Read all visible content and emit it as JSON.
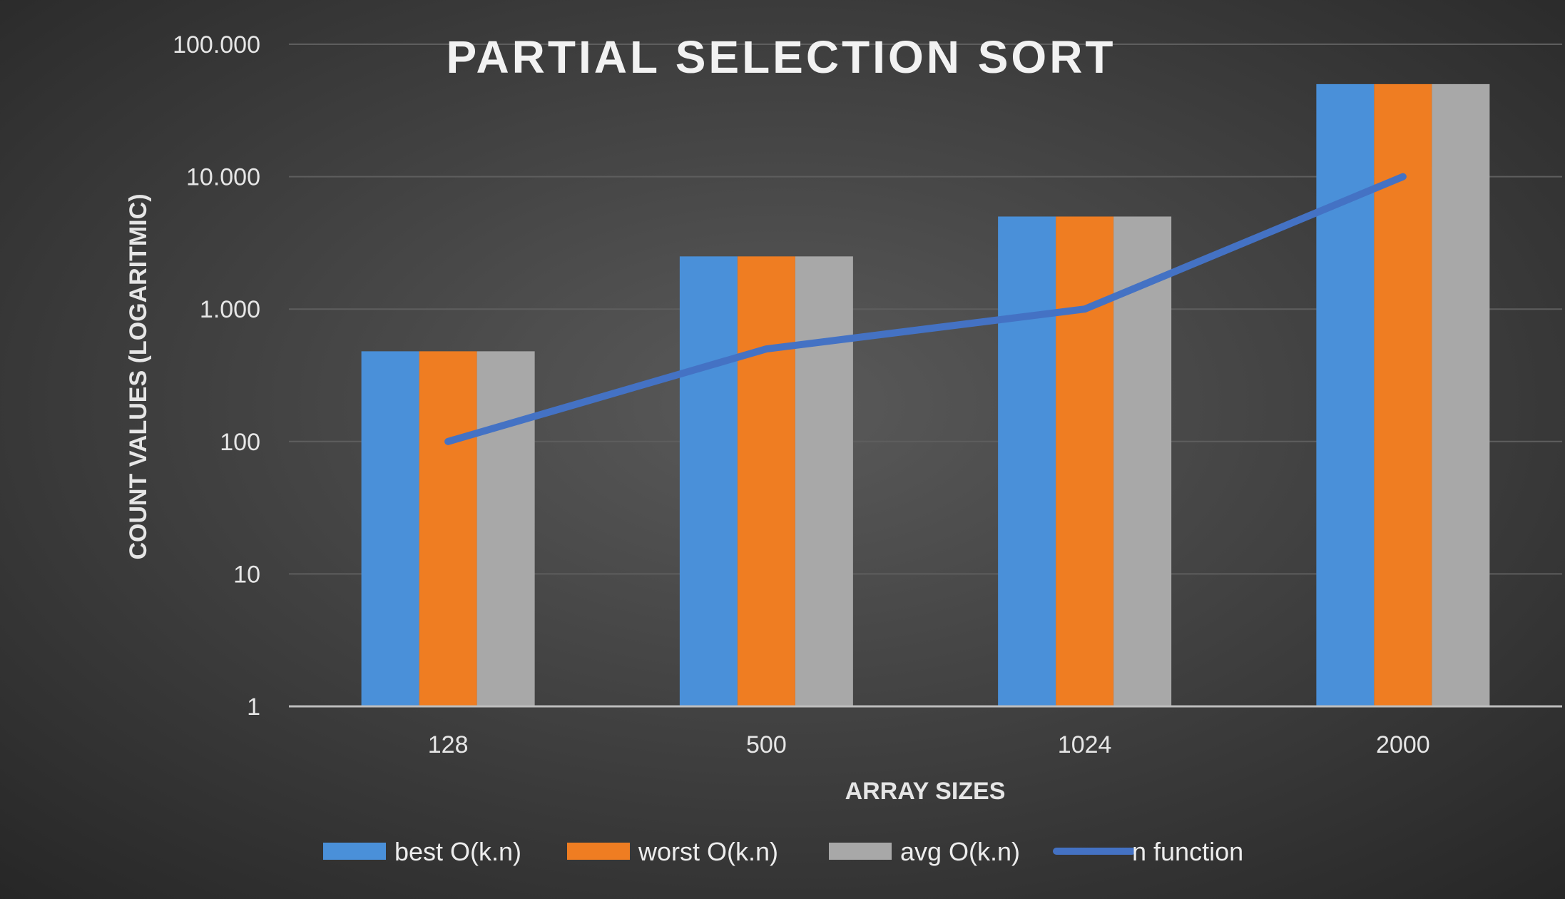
{
  "chart_data": {
    "type": "bar",
    "title": "PARTIAL SELECTION SORT",
    "xlabel": "ARRAY SIZES",
    "ylabel": "COUNT VALUES (LOGARITMIC)",
    "y_scale": "log",
    "ylim": [
      1,
      100000
    ],
    "y_ticks": [
      1,
      10,
      100,
      1000,
      10000,
      100000
    ],
    "y_tick_labels": [
      "1",
      "10",
      "100",
      "1.000",
      "10.000",
      "100.000"
    ],
    "categories": [
      "128",
      "500",
      "1024",
      "2000"
    ],
    "series": [
      {
        "name": "best O(k.n)",
        "type": "bar",
        "color": "#4a90d9",
        "values": [
          480,
          2500,
          5000,
          50000
        ]
      },
      {
        "name": "worst O(k.n)",
        "type": "bar",
        "color": "#ef7d22",
        "values": [
          480,
          2500,
          5000,
          50000
        ]
      },
      {
        "name": "avg O(k.n)",
        "type": "bar",
        "color": "#a8a8a8",
        "values": [
          480,
          2500,
          5000,
          50000
        ]
      },
      {
        "name": "n function",
        "type": "line",
        "color": "#4472c4",
        "values": [
          100,
          500,
          1000,
          10000
        ]
      }
    ],
    "grid": true,
    "legend_position": "bottom"
  }
}
